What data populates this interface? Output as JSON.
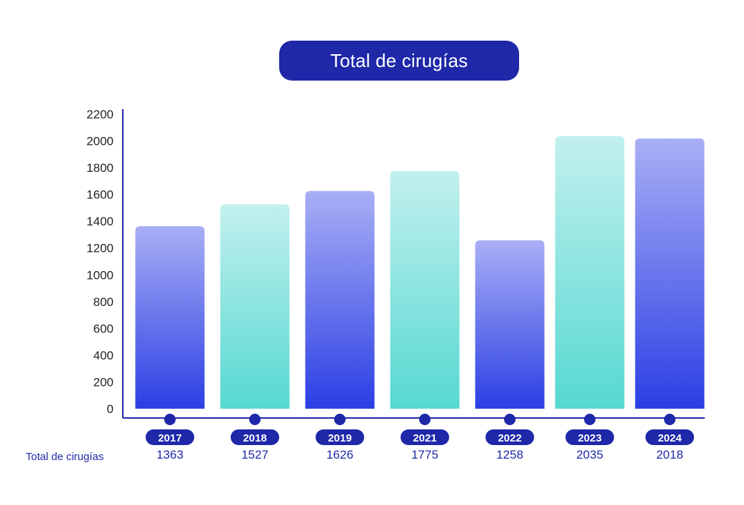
{
  "chart_data": {
    "type": "bar",
    "title": "Total de cirugías",
    "categories": [
      "2017",
      "2018",
      "2019",
      "2021",
      "2022",
      "2023",
      "2024"
    ],
    "series": [
      {
        "name": "Total de cirugías",
        "values": [
          1363,
          1527,
          1626,
          1775,
          1258,
          2035,
          2018
        ]
      }
    ],
    "value_labels": [
      "1363",
      "1527",
      "1626",
      "1775",
      "1258",
      "2035",
      "2018"
    ],
    "yticks": [
      "0",
      "200",
      "400",
      "600",
      "800",
      "1000",
      "1200",
      "1400",
      "1600",
      "1800",
      "2000",
      "2200"
    ],
    "ylim": [
      0,
      2200
    ],
    "grid": false,
    "colors": {
      "accent": "#1e28a8",
      "blue_top": "#a9aff5",
      "blue_bottom": "#2b3fe4",
      "teal_top": "#c2f0ee",
      "teal_bottom": "#56d8d1"
    },
    "bar_styles": [
      "blue",
      "teal",
      "blue",
      "teal",
      "blue",
      "teal",
      "blue"
    ]
  }
}
